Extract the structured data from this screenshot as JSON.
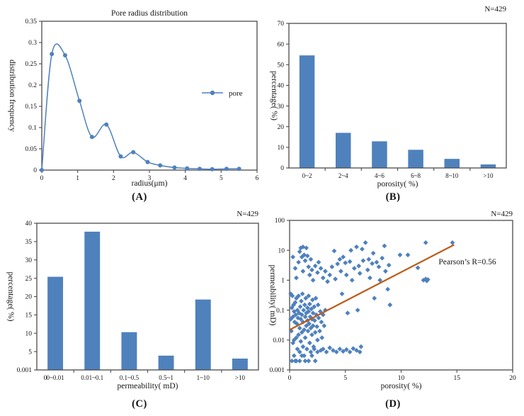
{
  "figure": {
    "background": "#ffffff",
    "accent_blue": "#4f81bd",
    "trend_orange": "#bd5b17",
    "frame_gray": "#4c4c4c"
  },
  "captions": {
    "a": "(A)",
    "b": "(B)",
    "c": "(C)",
    "d": "(D)"
  },
  "chart_data": [
    {
      "id": "A",
      "type": "line",
      "title": "Pore radius distribution",
      "xlabel": "radius(μm)",
      "ylabel": "distribution frequency",
      "legend_label": "pore",
      "xlim": [
        0,
        6
      ],
      "ylim": [
        0,
        0.35
      ],
      "x_ticks": [
        0,
        1,
        2,
        3,
        4,
        5,
        6
      ],
      "x_tick_labels": [
        "0",
        "1",
        "2",
        "3",
        "4",
        "5",
        "6"
      ],
      "y_ticks": [
        0,
        0.05,
        0.1,
        0.15,
        0.2,
        0.25,
        0.3,
        0.35
      ],
      "y_tick_labels": [
        "0",
        "0.05",
        "0.1",
        "0.15",
        "0.2",
        "0.25",
        "0.3",
        "0.35"
      ],
      "color": "#4f81bd",
      "series": [
        {
          "name": "pore",
          "x": [
            0,
            0.28,
            0.65,
            1.05,
            1.4,
            1.8,
            2.2,
            2.55,
            2.95,
            3.3,
            3.7,
            4.05,
            4.4,
            4.75,
            5.15,
            5.5
          ],
          "y": [
            0,
            0.273,
            0.27,
            0.163,
            0.078,
            0.107,
            0.032,
            0.042,
            0.019,
            0.011,
            0.006,
            0.004,
            0.003,
            0.002,
            0.003,
            0.003
          ]
        }
      ]
    },
    {
      "id": "B",
      "type": "bar",
      "note": "N=429",
      "xlabel": "porosity( %)",
      "ylabel": "percentage( %)",
      "categories": [
        "0~2",
        "2~4",
        "4~6",
        "6~8",
        "8~10",
        ">10"
      ],
      "values": [
        54.5,
        17,
        12.9,
        8.8,
        4.4,
        1.7
      ],
      "ylim": [
        0,
        70
      ],
      "y_ticks": [
        0,
        10,
        20,
        30,
        40,
        50,
        60,
        70
      ],
      "y_tick_labels": [
        "0",
        "10",
        "20",
        "30",
        "40",
        "50",
        "60",
        "70"
      ],
      "color": "#4f81bd"
    },
    {
      "id": "C",
      "type": "bar",
      "note": "N=429",
      "xlabel": "permeability( mD)",
      "ylabel": "percentage( %)",
      "categories": [
        "0~0.01",
        "0.01~0.1",
        "0.1~0.5",
        "0.5~1",
        "1~10",
        ">10"
      ],
      "values": [
        25.4,
        37.7,
        10.3,
        3.9,
        19.2,
        3.1
      ],
      "ylim": [
        0,
        40
      ],
      "y_ticks": [
        0,
        5,
        10,
        15,
        20,
        25,
        30,
        35,
        40
      ],
      "y_tick_labels": [
        "0.001",
        "5",
        "10",
        "15",
        "20",
        "25",
        "30",
        "35",
        "40"
      ],
      "origin_label": "0",
      "color": "#4f81bd"
    },
    {
      "id": "D",
      "type": "scatter",
      "note": "N=429",
      "xlabel": "porosity( %)",
      "ylabel": "permeability( mD)",
      "annotation": "Pearson’s R=0.56",
      "xlim": [
        0,
        20
      ],
      "x_ticks": [
        0,
        5,
        10,
        15,
        20
      ],
      "x_tick_labels": [
        "0",
        "5",
        "10",
        "15",
        "20"
      ],
      "y_scale": "log",
      "y_exp_lim": [
        -3,
        2
      ],
      "y_ticks_exp": [
        -3,
        -2,
        -1,
        0,
        1,
        2
      ],
      "y_tick_labels": [
        "0.001",
        "0.01",
        "0.1",
        "1",
        "10",
        "100"
      ],
      "marker": "diamond",
      "color": "#4f81bd",
      "trend": {
        "x": [
          0,
          14.7
        ],
        "y": [
          0.022,
          15
        ],
        "color": "#bd5b17"
      },
      "points": [
        [
          0.1,
          0.35
        ],
        [
          0.1,
          0.05
        ],
        [
          0.15,
          0.02
        ],
        [
          0.2,
          0.12
        ],
        [
          0.2,
          0.002
        ],
        [
          0.25,
          0.3
        ],
        [
          0.3,
          0.008
        ],
        [
          0.3,
          0.06
        ],
        [
          0.35,
          0.15
        ],
        [
          0.4,
          0.01
        ],
        [
          0.4,
          0.09
        ],
        [
          0.4,
          0.003
        ],
        [
          0.45,
          0.04
        ],
        [
          0.5,
          0.002
        ],
        [
          0.5,
          0.18
        ],
        [
          0.55,
          0.07
        ],
        [
          0.6,
          0.012
        ],
        [
          0.6,
          0.25
        ],
        [
          0.6,
          0.002
        ],
        [
          0.65,
          0.035
        ],
        [
          0.7,
          0.005
        ],
        [
          0.7,
          0.1
        ],
        [
          0.75,
          0.055
        ],
        [
          0.8,
          0.015
        ],
        [
          0.8,
          0.3
        ],
        [
          0.85,
          0.08
        ],
        [
          0.9,
          0.025
        ],
        [
          0.9,
          0.004
        ],
        [
          0.9,
          0.002
        ],
        [
          0.95,
          0.13
        ],
        [
          1,
          0.05
        ],
        [
          1,
          0.009
        ],
        [
          1.05,
          0.2
        ],
        [
          1.1,
          0.07
        ],
        [
          1.1,
          0.018
        ],
        [
          1.1,
          0.003
        ],
        [
          1.15,
          0.35
        ],
        [
          1.2,
          0.04
        ],
        [
          1.2,
          0.006
        ],
        [
          1.25,
          0.1
        ],
        [
          1.3,
          0.022
        ],
        [
          1.3,
          0.003
        ],
        [
          1.35,
          0.15
        ],
        [
          1.4,
          0.06
        ],
        [
          1.4,
          0.012
        ],
        [
          1.4,
          0.002
        ],
        [
          1.45,
          0.25
        ],
        [
          1.5,
          0.08
        ],
        [
          1.5,
          0.03
        ],
        [
          1.55,
          0.005
        ],
        [
          1.6,
          0.12
        ],
        [
          1.6,
          0.045
        ],
        [
          1.65,
          0.02
        ],
        [
          1.7,
          0.3
        ],
        [
          1.7,
          0.09
        ],
        [
          1.7,
          0.002
        ],
        [
          1.75,
          0.035
        ],
        [
          1.8,
          0.008
        ],
        [
          1.8,
          0.16
        ],
        [
          1.85,
          0.06
        ],
        [
          1.9,
          0.025
        ],
        [
          1.9,
          0.004
        ],
        [
          1.95,
          0.11
        ],
        [
          2,
          0.05
        ],
        [
          2,
          0.015
        ],
        [
          2,
          0.003
        ],
        [
          2.05,
          0.22
        ],
        [
          2.1,
          0.08
        ],
        [
          2.1,
          0.03
        ],
        [
          2.15,
          0.006
        ],
        [
          2.2,
          0.13
        ],
        [
          2.25,
          0.045
        ],
        [
          2.3,
          0.018
        ],
        [
          2.3,
          0.002
        ],
        [
          2.35,
          0.25
        ],
        [
          2.4,
          0.07
        ],
        [
          2.45,
          0.028
        ],
        [
          2.5,
          0.01
        ],
        [
          2.55,
          0.15
        ],
        [
          2.6,
          0.055
        ],
        [
          2.7,
          0.02
        ],
        [
          2.75,
          0.09
        ],
        [
          2.85,
          0.04
        ],
        [
          2.9,
          0.012
        ],
        [
          3,
          0.07
        ],
        [
          3.1,
          0.03
        ],
        [
          3.2,
          0.1
        ],
        [
          0.3,
          6
        ],
        [
          0.5,
          2.5
        ],
        [
          0.6,
          1.2
        ],
        [
          0.8,
          4
        ],
        [
          0.9,
          9
        ],
        [
          1,
          12
        ],
        [
          1.1,
          6
        ],
        [
          1.2,
          2
        ],
        [
          1.2,
          13
        ],
        [
          1.3,
          7
        ],
        [
          1.4,
          4.5
        ],
        [
          1.5,
          12
        ],
        [
          1.6,
          6.5
        ],
        [
          1.7,
          2.8
        ],
        [
          1.8,
          1.5
        ],
        [
          1.9,
          5
        ],
        [
          2,
          2.2
        ],
        [
          2.1,
          1
        ],
        [
          2.3,
          3
        ],
        [
          2.5,
          1.8
        ],
        [
          2.6,
          4
        ],
        [
          2.8,
          2.5
        ],
        [
          3,
          1.2
        ],
        [
          3.2,
          2
        ],
        [
          3.4,
          0.9
        ],
        [
          3.6,
          1.5
        ],
        [
          3.8,
          2.8
        ],
        [
          4,
          9.5
        ],
        [
          4.1,
          1.1
        ],
        [
          4.3,
          3.5
        ],
        [
          4.5,
          5
        ],
        [
          4.6,
          2
        ],
        [
          4.7,
          0.35
        ],
        [
          4.8,
          6
        ],
        [
          5,
          3.8
        ],
        [
          5.1,
          1.5
        ],
        [
          5.2,
          0.08
        ],
        [
          5.4,
          4.2
        ],
        [
          5.5,
          10
        ],
        [
          5.6,
          1
        ],
        [
          5.8,
          2.5
        ],
        [
          6,
          13
        ],
        [
          6.1,
          0.1
        ],
        [
          6.2,
          3
        ],
        [
          6.3,
          1.7
        ],
        [
          6.5,
          11
        ],
        [
          6.6,
          4.5
        ],
        [
          6.8,
          18
        ],
        [
          7,
          2.2
        ],
        [
          7.1,
          5
        ],
        [
          7.2,
          1.2
        ],
        [
          7.4,
          3.6
        ],
        [
          7.5,
          8
        ],
        [
          7.6,
          0.25
        ],
        [
          7.8,
          4
        ],
        [
          8,
          2.8
        ],
        [
          8.1,
          1
        ],
        [
          8.3,
          5.5
        ],
        [
          8.5,
          14
        ],
        [
          8.6,
          2
        ],
        [
          8.8,
          0.5
        ],
        [
          8.9,
          3.2
        ],
        [
          9,
          0.15
        ],
        [
          2.2,
          0.005
        ],
        [
          2.5,
          0.004
        ],
        [
          2.8,
          0.0045
        ],
        [
          3,
          0.005
        ],
        [
          3.3,
          0.004
        ],
        [
          3.6,
          0.0055
        ],
        [
          3.9,
          0.0045
        ],
        [
          4.2,
          0.004
        ],
        [
          4.5,
          0.005
        ],
        [
          4.8,
          0.0042
        ],
        [
          5.1,
          0.0048
        ],
        [
          5.4,
          0.004
        ],
        [
          5.7,
          0.0052
        ],
        [
          6,
          0.0045
        ],
        [
          6.3,
          0.004
        ],
        [
          6.4,
          0.006
        ],
        [
          9.9,
          7
        ],
        [
          10.6,
          7
        ],
        [
          11.5,
          2.6
        ],
        [
          12,
          1
        ],
        [
          12.2,
          18
        ],
        [
          12.2,
          1.1
        ],
        [
          12.3,
          0.95
        ],
        [
          12.4,
          1.05
        ],
        [
          14.6,
          18
        ]
      ]
    }
  ]
}
